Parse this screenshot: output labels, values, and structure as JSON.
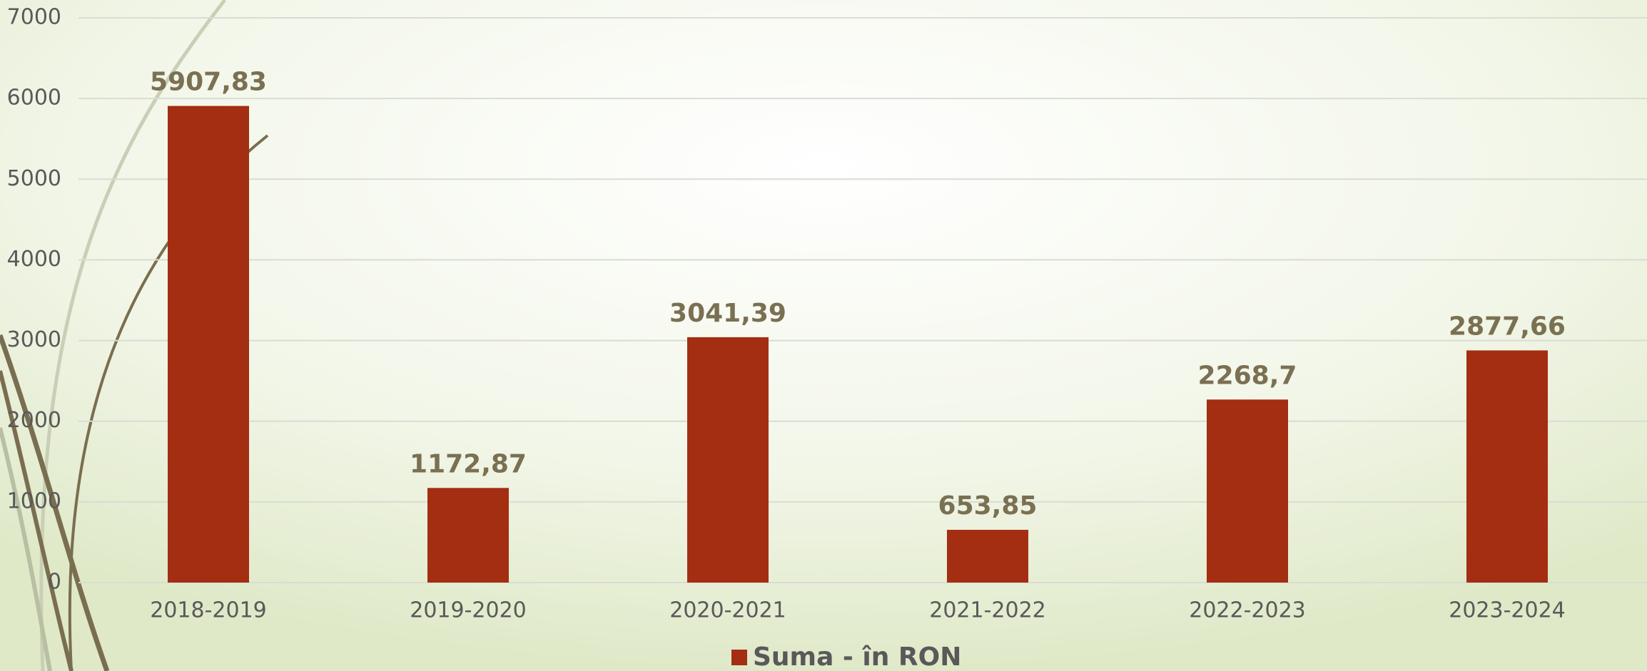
{
  "chart_data": {
    "type": "bar",
    "categories": [
      "2018-2019",
      "2019-2020",
      "2020-2021",
      "2021-2022",
      "2022-2023",
      "2023-2024"
    ],
    "series": [
      {
        "name": "Suma - în RON",
        "color": "#a32e12",
        "values": [
          5907.83,
          1172.87,
          3041.39,
          653.85,
          2268.7,
          2877.66
        ],
        "value_labels": [
          "5907,83",
          "1172,87",
          "3041,39",
          "653,85",
          "2268,7",
          "2877,66"
        ]
      }
    ],
    "ylim": [
      0,
      7000
    ],
    "yticks": [
      0,
      1000,
      2000,
      3000,
      4000,
      5000,
      6000,
      7000
    ],
    "grid": true,
    "legend": "bottom"
  }
}
